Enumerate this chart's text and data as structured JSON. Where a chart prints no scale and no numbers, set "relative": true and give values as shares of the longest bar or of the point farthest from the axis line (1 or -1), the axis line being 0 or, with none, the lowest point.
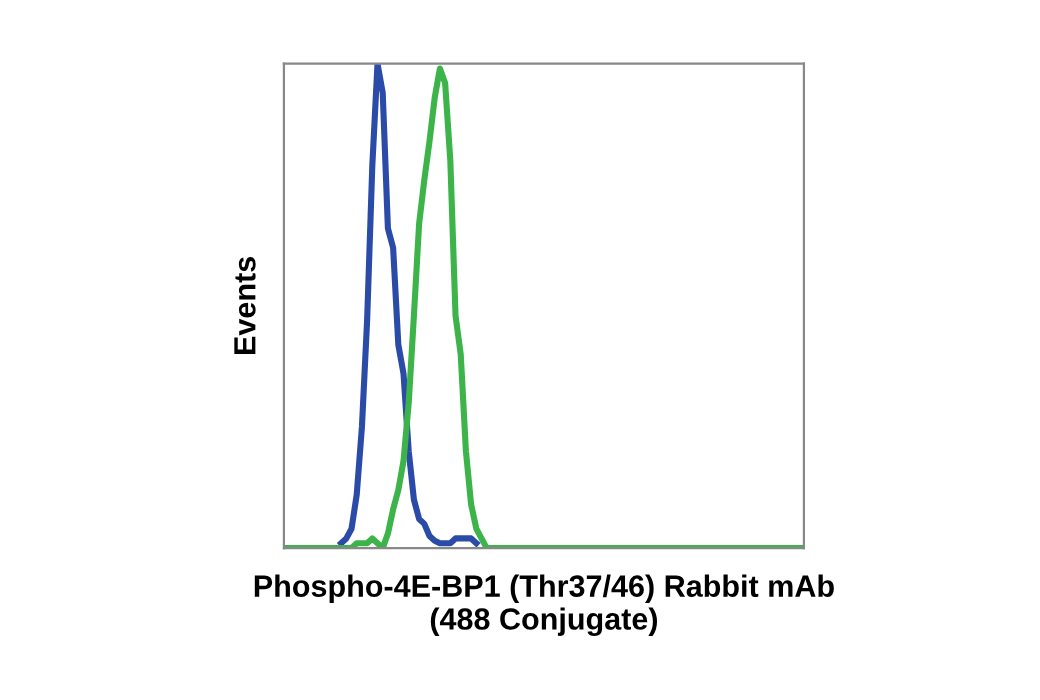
{
  "chart_data": {
    "type": "line",
    "relative": true,
    "xlabel": "Phospho-4E-BP1 (Thr37/46) Rabbit mAb\n(488 Conjugate)",
    "ylabel": "Events",
    "grid": false,
    "legend": false,
    "categories": [
      null,
      null,
      null,
      null,
      null,
      null,
      null,
      null,
      null,
      null,
      null,
      null,
      null,
      null,
      null,
      null,
      null,
      null,
      null,
      null,
      null,
      null,
      null,
      null,
      null,
      null,
      null,
      null,
      null,
      null,
      null,
      null,
      null,
      null,
      null,
      null,
      null,
      null,
      null,
      null,
      null,
      null,
      null,
      null,
      null,
      null,
      null,
      null,
      null,
      null,
      null,
      null,
      null,
      null,
      null,
      null,
      null,
      null,
      null,
      null,
      null,
      null,
      null,
      null,
      null,
      null,
      null,
      null,
      null,
      null,
      null,
      null,
      null,
      null,
      null,
      null,
      null,
      null,
      null,
      null,
      null,
      null,
      null,
      null,
      null,
      null,
      null,
      null,
      null,
      null,
      null,
      null,
      null,
      null,
      null,
      null,
      null,
      null,
      null,
      null,
      null
    ],
    "series": [
      {
        "color": "#2b4ba8",
        "values": [
          null,
          null,
          null,
          null,
          null,
          null,
          null,
          null,
          null,
          null,
          null,
          0.01,
          0.02,
          0.04,
          0.11,
          0.25,
          0.47,
          0.79,
          1.0,
          0.94,
          0.66,
          0.62,
          0.42,
          0.36,
          0.2,
          0.1,
          0.06,
          0.05,
          0.025,
          0.015,
          0.01,
          0.01,
          0.01,
          0.02,
          0.02,
          0.02,
          0.02,
          0.01,
          null,
          null,
          null,
          null,
          null,
          null,
          null,
          null,
          null,
          null,
          null,
          null,
          null,
          null,
          null,
          null,
          null,
          null,
          null,
          null,
          null,
          null,
          null,
          null,
          null,
          null,
          null,
          null,
          null,
          null,
          null,
          null,
          null,
          null,
          null,
          null,
          null,
          null,
          null,
          null,
          null,
          null,
          null,
          null,
          null,
          null,
          null,
          null,
          null,
          null,
          null,
          null,
          null,
          null,
          null,
          null,
          null,
          null,
          null,
          null,
          null,
          null,
          null
        ]
      },
      {
        "color": "#3cb44a",
        "values": [
          0,
          0,
          0,
          0,
          0,
          0,
          0,
          0,
          0,
          0,
          0,
          0,
          0,
          0,
          0.01,
          0.01,
          0.01,
          0.02,
          0.01,
          0,
          0.03,
          0.08,
          0.12,
          0.18,
          0.3,
          0.48,
          0.67,
          0.76,
          0.84,
          0.93,
          0.99,
          0.96,
          0.8,
          0.48,
          0.4,
          0.2,
          0.09,
          0.04,
          0.02,
          0,
          0,
          0,
          0,
          0,
          0,
          0,
          0,
          0,
          0,
          0,
          0,
          0,
          0,
          0,
          0,
          0,
          0,
          0,
          0,
          0,
          0,
          0,
          0,
          0,
          0,
          0,
          0,
          0,
          0,
          0,
          0,
          0,
          0,
          0,
          0,
          0,
          0,
          0,
          0,
          0,
          0,
          0,
          0,
          0,
          0,
          0,
          0,
          0,
          0,
          0,
          0,
          0,
          0,
          0,
          0,
          0,
          0,
          0,
          0,
          0,
          0
        ]
      }
    ]
  }
}
